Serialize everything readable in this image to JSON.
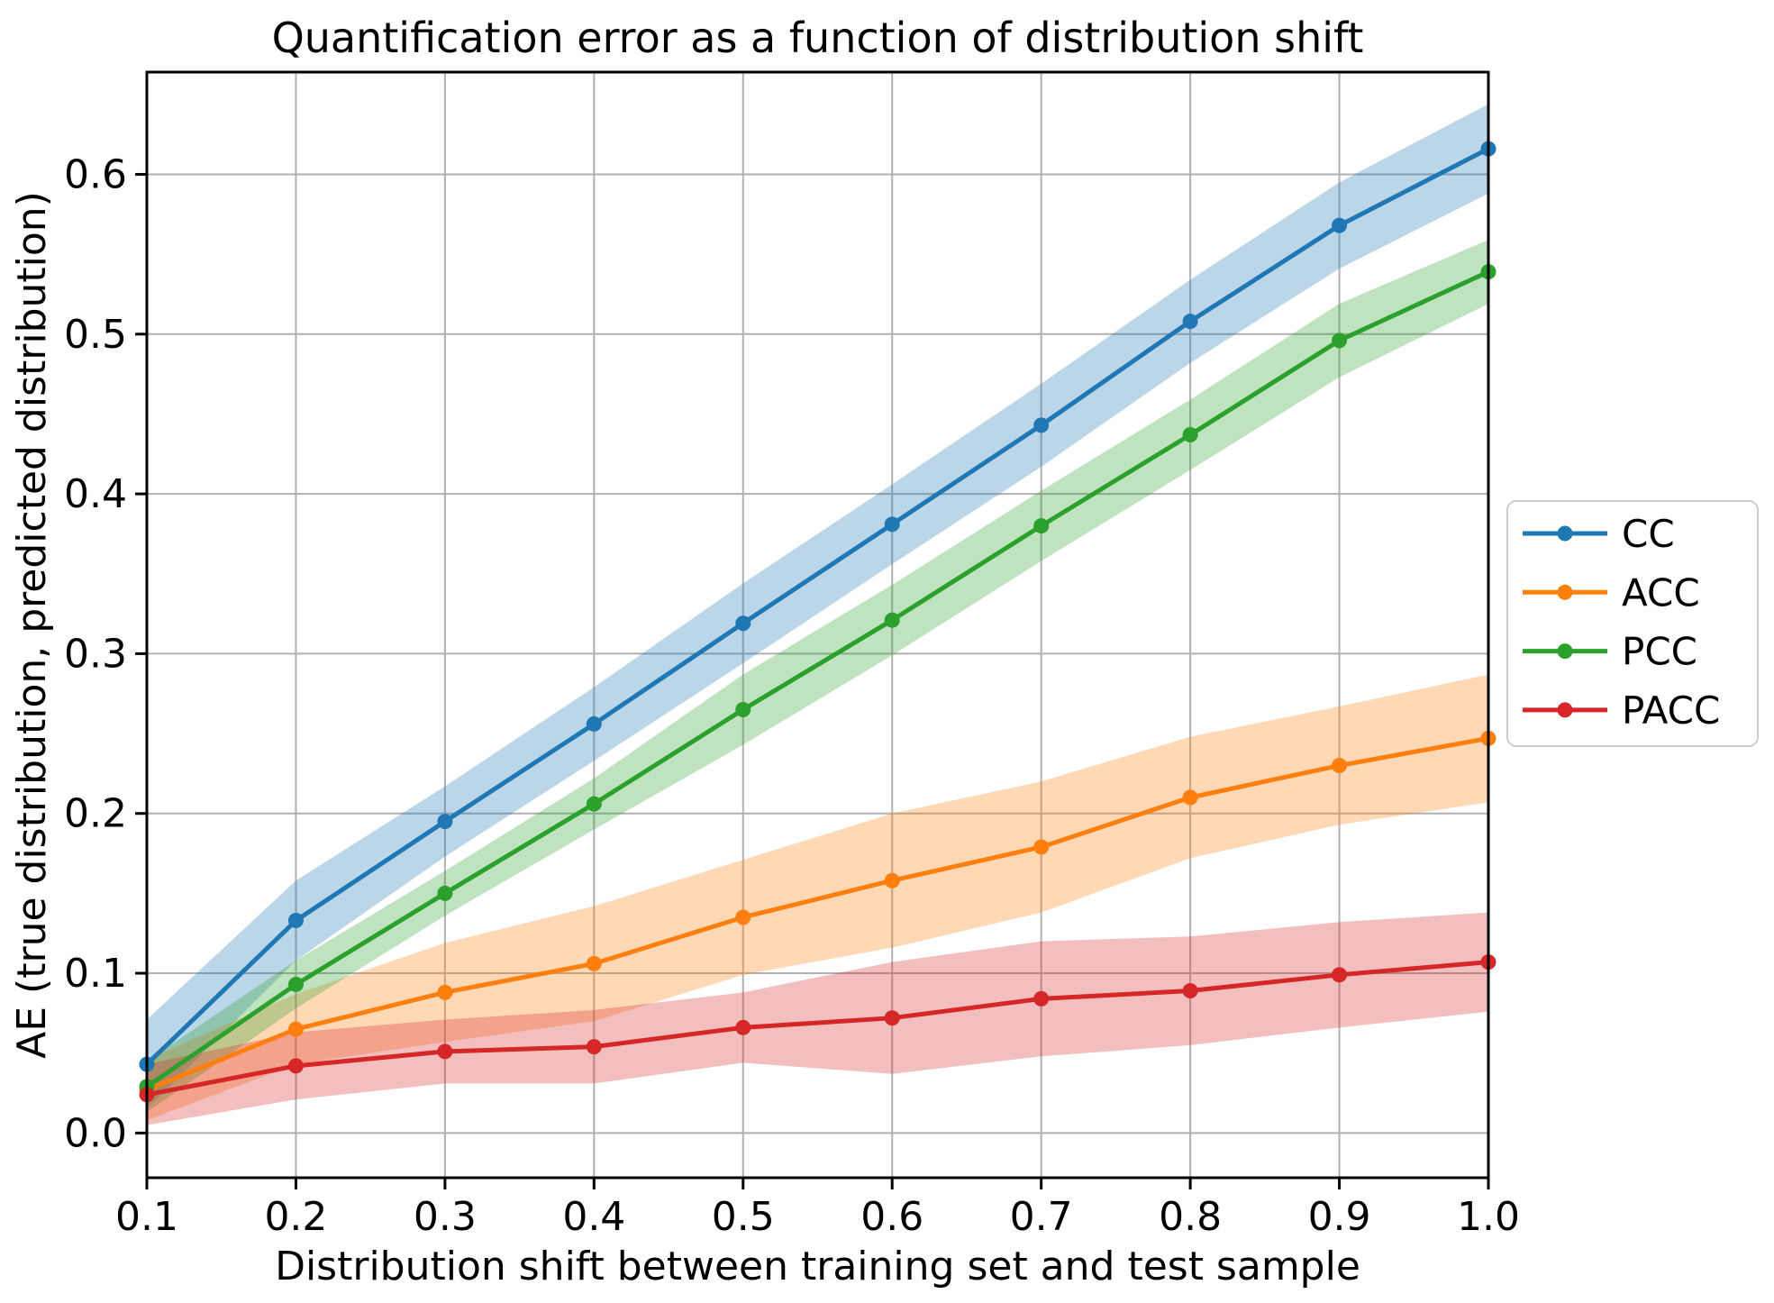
{
  "chart_data": {
    "type": "line",
    "title": "Quantification error as a function of distribution shift",
    "xlabel": "Distribution shift between training set and test sample",
    "ylabel": "AE (true distribution, predicted distribution)",
    "x": [
      0.1,
      0.2,
      0.3,
      0.4,
      0.5,
      0.6,
      0.7,
      0.8,
      0.9,
      1.0
    ],
    "xlim": [
      0.1,
      1.0
    ],
    "ylim": [
      -0.028,
      0.664
    ],
    "xtick_labels": [
      "0.1",
      "0.2",
      "0.3",
      "0.4",
      "0.5",
      "0.6",
      "0.7",
      "0.8",
      "0.9",
      "1.0"
    ],
    "ytick_values": [
      0.0,
      0.1,
      0.2,
      0.3,
      0.4,
      0.5,
      0.6
    ],
    "ytick_labels": [
      "0.0",
      "0.1",
      "0.2",
      "0.3",
      "0.4",
      "0.5",
      "0.6"
    ],
    "grid": true,
    "grid_color": "#b0b0b0",
    "axes_color": "#000000",
    "background_color": "#ffffff",
    "band_alpha": 0.3,
    "marker": "circle",
    "legend": {
      "location": "outside-right",
      "border_color": "#cccccc",
      "background": "#ffffff"
    },
    "series": [
      {
        "name": "CC",
        "color": "#1f77b4",
        "values": [
          0.043,
          0.133,
          0.195,
          0.256,
          0.319,
          0.381,
          0.443,
          0.508,
          0.568,
          0.616
        ],
        "band_lower": [
          0.015,
          0.108,
          0.173,
          0.233,
          0.294,
          0.356,
          0.417,
          0.482,
          0.541,
          0.588
        ],
        "band_upper": [
          0.071,
          0.158,
          0.217,
          0.279,
          0.344,
          0.406,
          0.469,
          0.534,
          0.595,
          0.644
        ]
      },
      {
        "name": "ACC",
        "color": "#ff7f0e",
        "values": [
          0.027,
          0.065,
          0.088,
          0.106,
          0.135,
          0.158,
          0.179,
          0.21,
          0.23,
          0.247
        ],
        "band_lower": [
          0.008,
          0.043,
          0.057,
          0.07,
          0.099,
          0.116,
          0.138,
          0.172,
          0.193,
          0.207
        ],
        "band_upper": [
          0.046,
          0.087,
          0.119,
          0.142,
          0.171,
          0.2,
          0.22,
          0.248,
          0.267,
          0.287
        ]
      },
      {
        "name": "PCC",
        "color": "#2ca02c",
        "values": [
          0.029,
          0.093,
          0.15,
          0.206,
          0.265,
          0.321,
          0.38,
          0.437,
          0.496,
          0.539
        ],
        "band_lower": [
          0.013,
          0.078,
          0.136,
          0.19,
          0.243,
          0.299,
          0.358,
          0.415,
          0.473,
          0.519
        ],
        "band_upper": [
          0.045,
          0.108,
          0.164,
          0.222,
          0.287,
          0.343,
          0.402,
          0.459,
          0.519,
          0.559
        ]
      },
      {
        "name": "PACC",
        "color": "#d62728",
        "values": [
          0.024,
          0.042,
          0.051,
          0.054,
          0.066,
          0.072,
          0.084,
          0.089,
          0.099,
          0.107
        ],
        "band_lower": [
          0.005,
          0.021,
          0.031,
          0.031,
          0.044,
          0.037,
          0.048,
          0.055,
          0.066,
          0.076
        ],
        "band_upper": [
          0.043,
          0.063,
          0.071,
          0.077,
          0.088,
          0.107,
          0.12,
          0.123,
          0.132,
          0.138
        ]
      }
    ]
  }
}
